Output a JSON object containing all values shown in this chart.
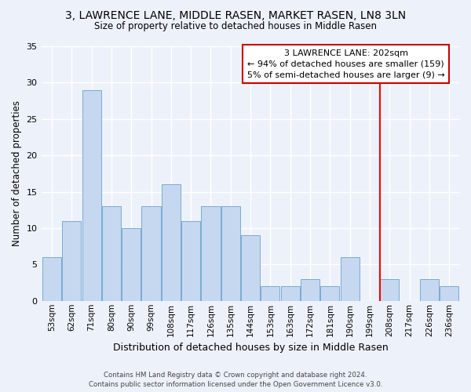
{
  "title1": "3, LAWRENCE LANE, MIDDLE RASEN, MARKET RASEN, LN8 3LN",
  "title2": "Size of property relative to detached houses in Middle Rasen",
  "xlabel": "Distribution of detached houses by size in Middle Rasen",
  "ylabel": "Number of detached properties",
  "categories": [
    "53sqm",
    "62sqm",
    "71sqm",
    "80sqm",
    "90sqm",
    "99sqm",
    "108sqm",
    "117sqm",
    "126sqm",
    "135sqm",
    "144sqm",
    "153sqm",
    "163sqm",
    "172sqm",
    "181sqm",
    "190sqm",
    "199sqm",
    "208sqm",
    "217sqm",
    "226sqm",
    "236sqm"
  ],
  "values": [
    6,
    11,
    29,
    13,
    10,
    13,
    16,
    11,
    13,
    13,
    9,
    2,
    2,
    3,
    2,
    6,
    0,
    3,
    0,
    3,
    2
  ],
  "bar_color": "#c5d8f0",
  "bar_edge_color": "#7baad4",
  "background_color": "#edf2fa",
  "grid_color": "#ffffff",
  "red_line_index": 16.5,
  "annotation_text": "3 LAWRENCE LANE: 202sqm\n← 94% of detached houses are smaller (159)\n5% of semi-detached houses are larger (9) →",
  "annotation_box_facecolor": "#ffffff",
  "annotation_box_edgecolor": "#cc0000",
  "footer1": "Contains HM Land Registry data © Crown copyright and database right 2024.",
  "footer2": "Contains public sector information licensed under the Open Government Licence v3.0.",
  "ylim": [
    0,
    35
  ],
  "yticks": [
    0,
    5,
    10,
    15,
    20,
    25,
    30,
    35
  ]
}
